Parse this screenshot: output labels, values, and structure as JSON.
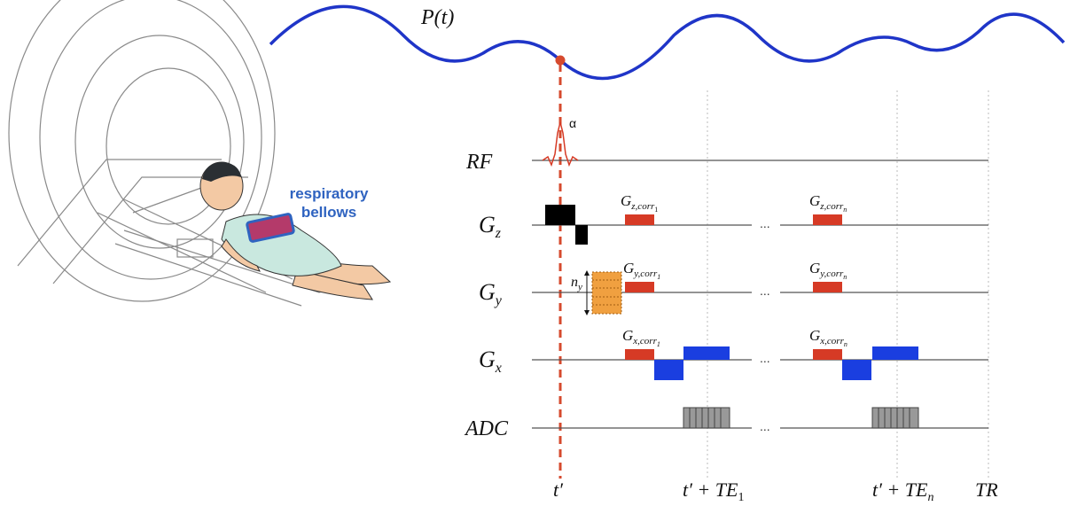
{
  "signal": {
    "label_main": "P",
    "label_arg": "t",
    "color": "#1f35c8"
  },
  "trigger_color": "#d64a2e",
  "flip_angle": "α",
  "bellows": {
    "line1": "respiratory",
    "line2": "bellows"
  },
  "channels": [
    {
      "id": "rf",
      "main": "RF",
      "sub": ""
    },
    {
      "id": "gz",
      "main": "G",
      "sub": "z"
    },
    {
      "id": "gy",
      "main": "G",
      "sub": "y"
    },
    {
      "id": "gx",
      "main": "G",
      "sub": "x"
    },
    {
      "id": "adc",
      "main": "ADC",
      "sub": ""
    }
  ],
  "corrections": {
    "gz1": {
      "main": "G",
      "sub": "z,corr",
      "subsub": "1"
    },
    "gzn": {
      "main": "G",
      "sub": "z,corr",
      "subsub": "n"
    },
    "gy1": {
      "main": "G",
      "sub": "y,corr",
      "subsub": "1"
    },
    "gyn": {
      "main": "G",
      "sub": "y,corr",
      "subsub": "n"
    },
    "gx1": {
      "main": "G",
      "sub": "x,corr",
      "subsub": "1"
    },
    "gxn": {
      "main": "G",
      "sub": "x,corr",
      "subsub": "n"
    }
  },
  "phase_steps": {
    "main": "n",
    "sub": "y"
  },
  "ellipsis": "...",
  "time_labels": {
    "t0": {
      "text": "t′",
      "sub": ""
    },
    "te1": {
      "text": "t′ + TE",
      "sub": "1"
    },
    "ten": {
      "text": "t′ + TE",
      "sub": "n"
    },
    "tr": {
      "text": "TR",
      "sub": ""
    }
  },
  "colors": {
    "correction": "#d63a25",
    "readout": "#1a3ee0",
    "slice": "#000000",
    "phase": "#f0a040",
    "adc": "#999999"
  }
}
